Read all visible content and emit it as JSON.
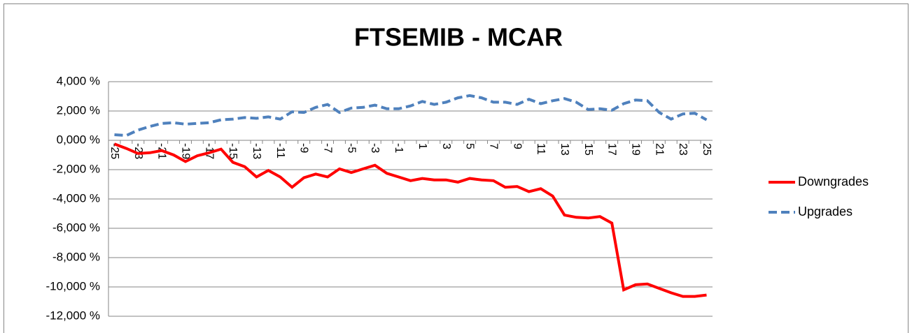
{
  "chart_data": {
    "type": "line",
    "title": "FTSEMIB - MCAR",
    "categories": [
      "-25",
      null,
      "-23",
      null,
      "-21",
      null,
      "-19",
      null,
      "-17",
      null,
      "-15",
      null,
      "-13",
      null,
      "-11",
      null,
      "-9",
      null,
      "-7",
      null,
      "-5",
      null,
      "-3",
      null,
      "-1",
      null,
      "1",
      null,
      "3",
      null,
      "5",
      null,
      "7",
      null,
      "9",
      null,
      "11",
      null,
      "13",
      null,
      "15",
      null,
      "17",
      null,
      "19",
      null,
      "21",
      null,
      "23",
      null,
      "25"
    ],
    "series": [
      {
        "name": "Downgrades",
        "color": "#ff0000",
        "dash": false,
        "values": [
          -0.25,
          -0.55,
          -0.9,
          -0.85,
          -0.7,
          -1.0,
          -1.45,
          -1.05,
          -0.85,
          -0.6,
          -1.5,
          -1.8,
          -2.5,
          -2.05,
          -2.5,
          -3.2,
          -2.55,
          -2.3,
          -2.5,
          -1.95,
          -2.2,
          -1.95,
          -1.7,
          -2.25,
          -2.5,
          -2.75,
          -2.6,
          -2.7,
          -2.7,
          -2.85,
          -2.6,
          -2.7,
          -2.75,
          -3.2,
          -3.15,
          -3.5,
          -3.3,
          -3.8,
          -5.1,
          -5.25,
          -5.3,
          -5.2,
          -5.65,
          -10.2,
          -9.85,
          -9.8,
          -10.1,
          -10.4,
          -10.65,
          -10.65,
          -10.55
        ]
      },
      {
        "name": "Upgrades",
        "color": "#4f81bd",
        "dash": true,
        "values": [
          0.38,
          0.33,
          0.7,
          0.95,
          1.15,
          1.2,
          1.1,
          1.15,
          1.2,
          1.4,
          1.45,
          1.55,
          1.5,
          1.6,
          1.45,
          1.95,
          1.9,
          2.25,
          2.45,
          1.9,
          2.2,
          2.25,
          2.4,
          2.15,
          2.15,
          2.35,
          2.65,
          2.45,
          2.6,
          2.9,
          3.05,
          2.9,
          2.6,
          2.6,
          2.45,
          2.8,
          2.5,
          2.7,
          2.85,
          2.6,
          2.1,
          2.15,
          2.05,
          2.5,
          2.75,
          2.7,
          1.9,
          1.45,
          1.8,
          1.85,
          1.4
        ]
      }
    ],
    "ylim": [
      -12,
      4
    ],
    "yticks": [
      {
        "value": 4,
        "label": "4,000 %"
      },
      {
        "value": 2,
        "label": "2,000 %"
      },
      {
        "value": 0,
        "label": "0,000 %"
      },
      {
        "value": -2,
        "label": "-2,000 %"
      },
      {
        "value": -4,
        "label": "-4,000 %"
      },
      {
        "value": -6,
        "label": "-6,000 %"
      },
      {
        "value": -8,
        "label": "-8,000 %"
      },
      {
        "value": -10,
        "label": "-10,000 %"
      },
      {
        "value": -12,
        "label": "-12,000 %"
      }
    ],
    "grid": true,
    "legend": "right"
  }
}
